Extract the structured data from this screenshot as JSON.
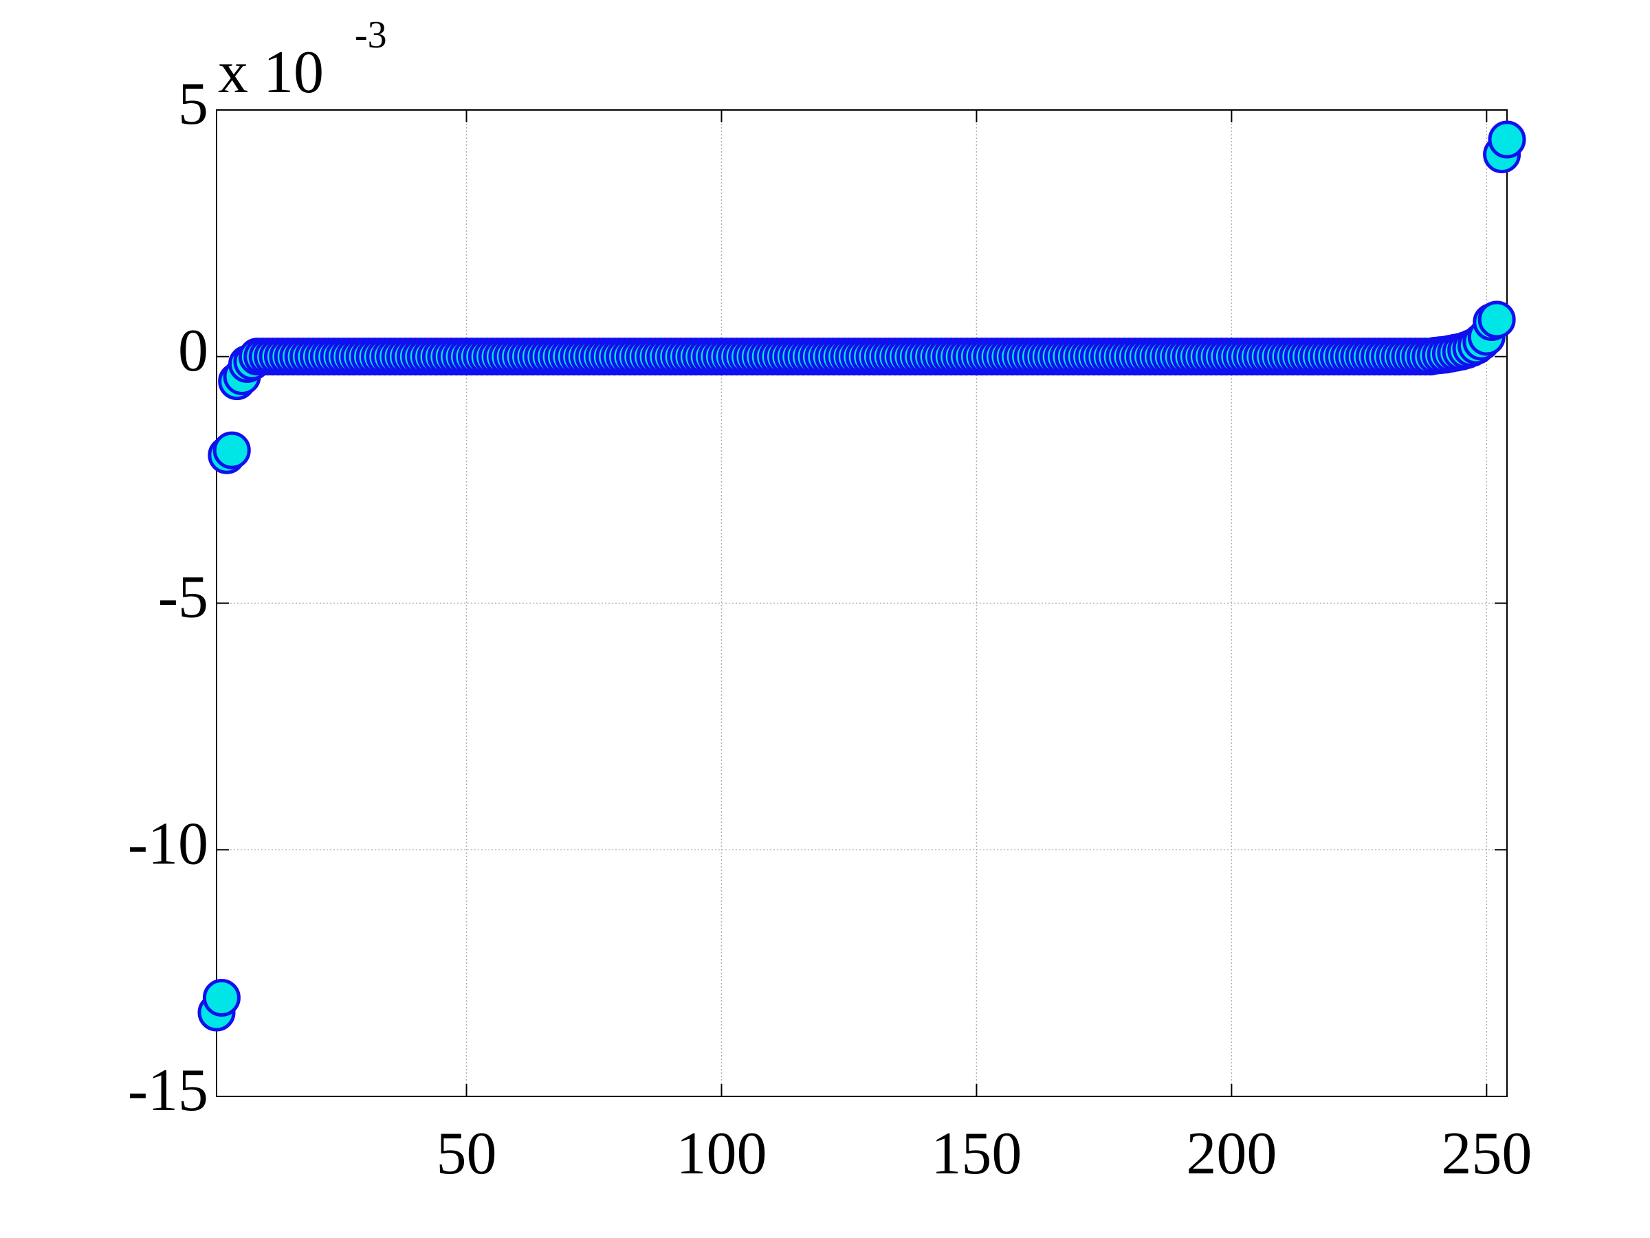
{
  "chart_data": {
    "type": "scatter",
    "y_exponent_base": "x 10",
    "y_exponent_power": "-3",
    "x": [
      1,
      2,
      3,
      4,
      5,
      6,
      7,
      8,
      9,
      10,
      11,
      12,
      13,
      14,
      15,
      16,
      17,
      18,
      19,
      20,
      21,
      22,
      23,
      24,
      25,
      26,
      27,
      28,
      29,
      30,
      31,
      32,
      33,
      34,
      35,
      36,
      37,
      38,
      39,
      40,
      41,
      42,
      43,
      44,
      45,
      46,
      47,
      48,
      49,
      50,
      51,
      52,
      53,
      54,
      55,
      56,
      57,
      58,
      59,
      60,
      61,
      62,
      63,
      64,
      65,
      66,
      67,
      68,
      69,
      70,
      71,
      72,
      73,
      74,
      75,
      76,
      77,
      78,
      79,
      80,
      81,
      82,
      83,
      84,
      85,
      86,
      87,
      88,
      89,
      90,
      91,
      92,
      93,
      94,
      95,
      96,
      97,
      98,
      99,
      100,
      101,
      102,
      103,
      104,
      105,
      106,
      107,
      108,
      109,
      110,
      111,
      112,
      113,
      114,
      115,
      116,
      117,
      118,
      119,
      120,
      121,
      122,
      123,
      124,
      125,
      126,
      127,
      128,
      129,
      130,
      131,
      132,
      133,
      134,
      135,
      136,
      137,
      138,
      139,
      140,
      141,
      142,
      143,
      144,
      145,
      146,
      147,
      148,
      149,
      150,
      151,
      152,
      153,
      154,
      155,
      156,
      157,
      158,
      159,
      160,
      161,
      162,
      163,
      164,
      165,
      166,
      167,
      168,
      169,
      170,
      171,
      172,
      173,
      174,
      175,
      176,
      177,
      178,
      179,
      180,
      181,
      182,
      183,
      184,
      185,
      186,
      187,
      188,
      189,
      190,
      191,
      192,
      193,
      194,
      195,
      196,
      197,
      198,
      199,
      200,
      201,
      202,
      203,
      204,
      205,
      206,
      207,
      208,
      209,
      210,
      211,
      212,
      213,
      214,
      215,
      216,
      217,
      218,
      219,
      220,
      221,
      222,
      223,
      224,
      225,
      226,
      227,
      228,
      229,
      230,
      231,
      232,
      233,
      234,
      235,
      236,
      237,
      238,
      239,
      240,
      241,
      242,
      243,
      244,
      245,
      246,
      247,
      248,
      249,
      250,
      251,
      252,
      253,
      254
    ],
    "values": [
      -13.3,
      -13.0,
      -2.0,
      -1.9,
      -0.5,
      -0.4,
      -0.15,
      -0.1,
      0,
      0,
      0,
      0,
      0,
      0,
      0,
      0,
      0,
      0,
      0,
      0,
      0,
      0,
      0,
      0,
      0,
      0,
      0,
      0,
      0,
      0,
      0,
      0,
      0,
      0,
      0,
      0,
      0,
      0,
      0,
      0,
      0,
      0,
      0,
      0,
      0,
      0,
      0,
      0,
      0,
      0,
      0,
      0,
      0,
      0,
      0,
      0,
      0,
      0,
      0,
      0,
      0,
      0,
      0,
      0,
      0,
      0,
      0,
      0,
      0,
      0,
      0,
      0,
      0,
      0,
      0,
      0,
      0,
      0,
      0,
      0,
      0,
      0,
      0,
      0,
      0,
      0,
      0,
      0,
      0,
      0,
      0,
      0,
      0,
      0,
      0,
      0,
      0,
      0,
      0,
      0,
      0,
      0,
      0,
      0,
      0,
      0,
      0,
      0,
      0,
      0,
      0,
      0,
      0,
      0,
      0,
      0,
      0,
      0,
      0,
      0,
      0,
      0,
      0,
      0,
      0,
      0,
      0,
      0,
      0,
      0,
      0,
      0,
      0,
      0,
      0,
      0,
      0,
      0,
      0,
      0,
      0,
      0,
      0,
      0,
      0,
      0,
      0,
      0,
      0,
      0,
      0,
      0,
      0,
      0,
      0,
      0,
      0,
      0,
      0,
      0,
      0,
      0,
      0,
      0,
      0,
      0,
      0,
      0,
      0,
      0,
      0,
      0,
      0,
      0,
      0,
      0,
      0,
      0,
      0,
      0,
      0,
      0,
      0,
      0,
      0,
      0,
      0,
      0,
      0,
      0,
      0,
      0,
      0,
      0,
      0,
      0,
      0,
      0,
      0,
      0,
      0,
      0,
      0,
      0,
      0,
      0,
      0,
      0,
      0,
      0,
      0,
      0,
      0,
      0,
      0,
      0,
      0,
      0,
      0,
      0,
      0,
      0,
      0,
      0,
      0,
      0,
      0,
      0,
      0,
      0,
      0,
      0,
      0,
      0,
      0,
      0,
      0,
      0,
      0,
      0.02,
      0.03,
      0.04,
      0.06,
      0.08,
      0.1,
      0.13,
      0.17,
      0.22,
      0.3,
      0.4,
      0.7,
      0.75,
      4.1,
      4.4
    ],
    "color": "#00e6e6",
    "edge_color": "#1010ee",
    "xlim": [
      1,
      254
    ],
    "ylim": [
      -15,
      5
    ],
    "xticks": [
      50,
      100,
      150,
      200,
      250
    ],
    "yticks": [
      -15,
      -10,
      -5,
      0,
      5
    ],
    "grid": true
  }
}
